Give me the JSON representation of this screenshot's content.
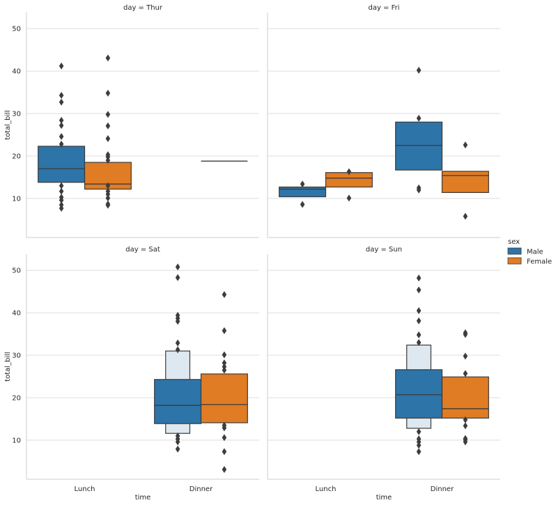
{
  "chart_data": {
    "type": "boxen",
    "ylabel": "total_bill",
    "xlabel": "time",
    "categories": [
      "Lunch",
      "Dinner"
    ],
    "ylim": [
      0.8,
      53.8
    ],
    "yticks": [
      10,
      20,
      30,
      40,
      50
    ],
    "grid": true,
    "legend": {
      "title": "sex",
      "position": "right",
      "entries": [
        {
          "name": "Male",
          "color": "#2d74a8"
        },
        {
          "name": "Female",
          "color": "#e07c24"
        }
      ]
    },
    "panels": [
      {
        "title": "day = Thur",
        "boxes": [
          {
            "cat": "Lunch",
            "hue": "Male",
            "q1": 13.8,
            "median": 17.0,
            "q3": 22.3,
            "outliers": [
              41.2,
              34.3,
              32.7,
              28.4,
              27.2,
              24.6,
              22.8,
              13.0,
              11.7,
              10.3,
              9.6,
              8.5,
              7.7
            ]
          },
          {
            "cat": "Lunch",
            "hue": "Female",
            "q1": 12.2,
            "median": 13.4,
            "q3": 18.5,
            "outliers": [
              43.1,
              34.8,
              29.8,
              27.1,
              24.1,
              20.3,
              19.8,
              19.0,
              13.0,
              11.7,
              11.0,
              10.1,
              8.7,
              8.4
            ]
          },
          {
            "cat": "Dinner",
            "hue": "Female",
            "q1": 18.8,
            "median": 18.8,
            "q3": 18.8,
            "outliers": []
          }
        ]
      },
      {
        "title": "day = Fri",
        "boxes": [
          {
            "cat": "Lunch",
            "hue": "Male",
            "q1": 10.4,
            "median": 12.2,
            "q3": 12.7,
            "outliers": [
              13.4,
              8.6
            ]
          },
          {
            "cat": "Lunch",
            "hue": "Female",
            "q1": 12.7,
            "median": 14.8,
            "q3": 16.1,
            "outliers": [
              16.3,
              10.1
            ]
          },
          {
            "cat": "Dinner",
            "hue": "Male",
            "q1": 16.7,
            "median": 22.5,
            "q3": 28.0,
            "outliers": [
              40.2,
              28.9,
              12.5,
              12.0
            ]
          },
          {
            "cat": "Dinner",
            "hue": "Female",
            "q1": 11.4,
            "median": 15.4,
            "q3": 16.4,
            "outliers": [
              22.6,
              5.8
            ]
          }
        ]
      },
      {
        "title": "day = Sat",
        "boxes": [
          {
            "cat": "Dinner",
            "hue": "Male",
            "q1": 13.9,
            "median": 18.2,
            "q3": 24.3,
            "outer": [
              11.6,
              31.0
            ],
            "outliers": [
              50.8,
              48.3,
              39.4,
              38.7,
              38.0,
              32.9,
              31.3,
              11.0,
              10.3,
              9.6,
              7.9
            ]
          },
          {
            "cat": "Dinner",
            "hue": "Female",
            "q1": 14.1,
            "median": 18.4,
            "q3": 25.6,
            "outliers": [
              44.3,
              35.8,
              30.1,
              28.2,
              27.3,
              26.5,
              13.5,
              12.9,
              10.6,
              7.3,
              3.1
            ]
          }
        ]
      },
      {
        "title": "day = Sun",
        "boxes": [
          {
            "cat": "Dinner",
            "hue": "Male",
            "q1": 15.2,
            "median": 20.7,
            "q3": 26.6,
            "outer": [
              12.8,
              32.4
            ],
            "outliers": [
              48.2,
              45.4,
              40.5,
              38.1,
              34.8,
              33.0,
              12.0,
              10.3,
              9.6,
              8.8,
              7.3
            ]
          },
          {
            "cat": "Dinner",
            "hue": "Female",
            "q1": 15.2,
            "median": 17.4,
            "q3": 24.9,
            "outliers": [
              35.3,
              34.9,
              29.8,
              25.7,
              14.8,
              13.4,
              10.4,
              10.1,
              9.6
            ]
          }
        ]
      }
    ]
  }
}
